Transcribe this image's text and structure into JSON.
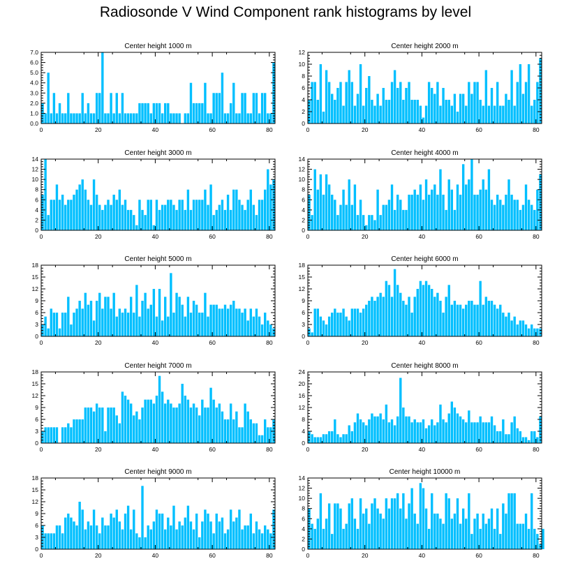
{
  "title": "Radiosonde V Wind Component rank histograms by level",
  "colors": {
    "bar": "#00BFFF",
    "axis": "#000000"
  },
  "chart_data": [
    {
      "type": "bar",
      "title": "Center height 1000 m",
      "xlabel": "",
      "ylabel": "",
      "xlim": [
        0,
        82
      ],
      "ylim": [
        0,
        7
      ],
      "yticks": [
        "0.0",
        "1.0",
        "2.0",
        "3.0",
        "4.0",
        "5.0",
        "6.0",
        "7.0"
      ],
      "ytick_values": [
        0,
        1,
        2,
        3,
        4,
        5,
        6,
        7
      ],
      "xticks": [
        0,
        20,
        40,
        60,
        80
      ],
      "values": [
        2,
        1,
        5,
        1,
        3,
        1,
        2,
        1,
        1,
        3,
        1,
        1,
        1,
        1,
        3,
        1,
        2,
        1,
        1,
        3,
        3,
        7,
        1,
        1,
        3,
        1,
        3,
        1,
        3,
        1,
        1,
        1,
        1,
        1,
        2,
        2,
        2,
        2,
        1,
        2,
        2,
        2,
        1,
        2,
        2,
        1,
        1,
        1,
        1,
        0,
        1,
        1,
        4,
        2,
        2,
        2,
        2,
        4,
        1,
        1,
        3,
        3,
        3,
        5,
        1,
        1,
        2,
        4,
        1,
        1,
        3,
        3,
        1,
        1,
        3,
        3,
        1,
        3,
        3,
        1,
        1,
        6
      ]
    },
    {
      "type": "bar",
      "title": "Center height 2000 m",
      "xlabel": "",
      "ylabel": "",
      "xlim": [
        0,
        82
      ],
      "ylim": [
        0,
        12
      ],
      "yticks": [
        "0",
        "2",
        "4",
        "6",
        "8",
        "10",
        "12"
      ],
      "ytick_values": [
        0,
        2,
        4,
        6,
        8,
        10,
        12
      ],
      "xticks": [
        0,
        20,
        40,
        60,
        80
      ],
      "values": [
        4,
        7,
        7,
        4,
        10,
        2,
        9,
        7,
        5,
        4,
        6,
        7,
        3,
        7,
        9,
        7,
        3,
        5,
        10,
        3,
        6,
        8,
        4,
        3,
        5,
        3,
        6,
        4,
        4,
        7,
        9,
        6,
        7,
        4,
        6,
        7,
        4,
        4,
        4,
        3,
        1,
        3,
        7,
        6,
        5,
        7,
        3,
        6,
        4,
        4,
        3,
        5,
        2,
        5,
        5,
        3,
        7,
        5,
        7,
        7,
        4,
        3,
        9,
        3,
        6,
        3,
        7,
        3,
        3,
        5,
        4,
        9,
        3,
        7,
        10,
        5,
        7,
        10,
        3,
        4,
        7,
        11
      ]
    },
    {
      "type": "bar",
      "title": "Center height 3000 m",
      "xlabel": "",
      "ylabel": "",
      "xlim": [
        0,
        82
      ],
      "ylim": [
        0,
        14
      ],
      "yticks": [
        "0",
        "2",
        "4",
        "6",
        "8",
        "10",
        "12",
        "14"
      ],
      "ytick_values": [
        0,
        2,
        4,
        6,
        8,
        10,
        12,
        14
      ],
      "xticks": [
        0,
        20,
        40,
        60,
        80
      ],
      "values": [
        7,
        14,
        3,
        6,
        6,
        9,
        6,
        7,
        5,
        6,
        6,
        7,
        8,
        9,
        10,
        8,
        6,
        5,
        10,
        7,
        5,
        4,
        5,
        6,
        5,
        7,
        6,
        8,
        5,
        6,
        4,
        4,
        3,
        1,
        6,
        4,
        3,
        6,
        6,
        1,
        6,
        4,
        5,
        5,
        6,
        6,
        5,
        4,
        6,
        6,
        4,
        8,
        4,
        6,
        6,
        6,
        6,
        8,
        5,
        9,
        3,
        4,
        5,
        6,
        4,
        7,
        4,
        8,
        8,
        6,
        5,
        4,
        6,
        8,
        5,
        3,
        6,
        6,
        8,
        12,
        9,
        10
      ]
    },
    {
      "type": "bar",
      "title": "Center height 4000 m",
      "xlabel": "",
      "ylabel": "",
      "xlim": [
        0,
        82
      ],
      "ylim": [
        0,
        14
      ],
      "yticks": [
        "0",
        "2",
        "4",
        "6",
        "8",
        "10",
        "12",
        "14"
      ],
      "ytick_values": [
        0,
        2,
        4,
        6,
        8,
        10,
        12,
        14
      ],
      "xticks": [
        0,
        20,
        40,
        60,
        80
      ],
      "values": [
        7,
        3,
        12,
        8,
        11,
        7,
        11,
        9,
        7,
        6,
        3,
        5,
        8,
        5,
        10,
        5,
        9,
        3,
        6,
        3,
        1,
        3,
        3,
        2,
        8,
        3,
        5,
        5,
        6,
        9,
        4,
        7,
        6,
        4,
        4,
        7,
        7,
        8,
        7,
        9,
        6,
        10,
        7,
        8,
        9,
        7,
        12,
        7,
        4,
        10,
        8,
        4,
        9,
        7,
        13,
        9,
        10,
        14,
        7,
        7,
        8,
        10,
        8,
        12,
        6,
        5,
        7,
        6,
        5,
        7,
        10,
        7,
        6,
        6,
        4,
        5,
        9,
        6,
        5,
        4,
        8,
        11
      ]
    },
    {
      "type": "bar",
      "title": "Center height 5000 m",
      "xlabel": "",
      "ylabel": "",
      "xlim": [
        0,
        82
      ],
      "ylim": [
        0,
        18
      ],
      "yticks": [
        "0",
        "3",
        "6",
        "9",
        "12",
        "15",
        "18"
      ],
      "ytick_values": [
        0,
        3,
        6,
        9,
        12,
        15,
        18
      ],
      "xticks": [
        0,
        20,
        40,
        60,
        80
      ],
      "values": [
        3,
        5,
        2,
        7,
        6,
        6,
        2,
        6,
        6,
        10,
        3,
        6,
        7,
        9,
        7,
        11,
        8,
        9,
        4,
        9,
        11,
        7,
        10,
        10,
        7,
        11,
        5,
        7,
        6,
        7,
        6,
        10,
        6,
        13,
        5,
        9,
        11,
        7,
        8,
        12,
        5,
        12,
        4,
        10,
        5,
        16,
        6,
        11,
        10,
        8,
        5,
        10,
        6,
        9,
        8,
        6,
        6,
        11,
        5,
        8,
        8,
        8,
        7,
        7,
        8,
        7,
        8,
        9,
        7,
        7,
        6,
        7,
        4,
        7,
        5,
        7,
        5,
        3,
        6,
        4,
        3,
        2
      ]
    },
    {
      "type": "bar",
      "title": "Center height 6000 m",
      "xlabel": "",
      "ylabel": "",
      "xlim": [
        0,
        82
      ],
      "ylim": [
        0,
        18
      ],
      "yticks": [
        "0",
        "3",
        "6",
        "9",
        "12",
        "15",
        "18"
      ],
      "ytick_values": [
        0,
        3,
        6,
        9,
        12,
        15,
        18
      ],
      "xticks": [
        0,
        20,
        40,
        60,
        80
      ],
      "values": [
        2,
        1,
        7,
        7,
        5,
        4,
        3,
        5,
        6,
        7,
        6,
        6,
        7,
        5,
        4,
        7,
        7,
        7,
        6,
        7,
        8,
        9,
        10,
        9,
        10,
        11,
        10,
        14,
        13,
        10,
        17,
        13,
        11,
        9,
        8,
        10,
        6,
        10,
        12,
        14,
        13,
        14,
        13,
        12,
        10,
        11,
        9,
        6,
        10,
        13,
        8,
        9,
        8,
        8,
        7,
        8,
        9,
        9,
        8,
        8,
        14,
        8,
        10,
        9,
        9,
        8,
        7,
        8,
        6,
        5,
        6,
        4,
        5,
        3,
        4,
        4,
        3,
        2,
        3,
        2,
        2,
        2
      ]
    },
    {
      "type": "bar",
      "title": "Center height 7000 m",
      "xlabel": "",
      "ylabel": "",
      "xlim": [
        0,
        82
      ],
      "ylim": [
        0,
        18
      ],
      "yticks": [
        "0",
        "3",
        "6",
        "9",
        "12",
        "15",
        "18"
      ],
      "ytick_values": [
        0,
        3,
        6,
        9,
        12,
        15,
        18
      ],
      "xticks": [
        0,
        20,
        40,
        60,
        80
      ],
      "values": [
        3,
        4,
        4,
        4,
        4,
        4,
        0,
        4,
        4,
        5,
        4,
        6,
        6,
        6,
        6,
        9,
        9,
        9,
        8,
        10,
        9,
        9,
        3,
        9,
        9,
        9,
        7,
        5,
        13,
        12,
        11,
        10,
        7,
        8,
        6,
        9,
        11,
        11,
        11,
        10,
        12,
        17,
        13,
        10,
        11,
        10,
        9,
        9,
        10,
        15,
        12,
        11,
        9,
        10,
        9,
        7,
        11,
        9,
        9,
        14,
        11,
        9,
        10,
        8,
        6,
        6,
        10,
        6,
        8,
        4,
        4,
        10,
        8,
        6,
        5,
        5,
        2,
        2,
        6,
        4,
        4,
        6
      ]
    },
    {
      "type": "bar",
      "title": "Center height 8000 m",
      "xlabel": "",
      "ylabel": "",
      "xlim": [
        0,
        82
      ],
      "ylim": [
        0,
        24
      ],
      "yticks": [
        "0",
        "4",
        "8",
        "12",
        "16",
        "20",
        "24"
      ],
      "ytick_values": [
        0,
        4,
        8,
        12,
        16,
        20,
        24
      ],
      "xticks": [
        0,
        20,
        40,
        60,
        80
      ],
      "values": [
        4,
        3,
        2,
        2,
        2,
        3,
        3,
        4,
        4,
        8,
        3,
        2,
        3,
        3,
        6,
        4,
        7,
        10,
        8,
        7,
        6,
        8,
        10,
        9,
        9,
        10,
        8,
        13,
        7,
        8,
        6,
        9,
        22,
        12,
        9,
        9,
        7,
        8,
        7,
        7,
        8,
        5,
        6,
        8,
        6,
        7,
        13,
        8,
        7,
        10,
        14,
        12,
        10,
        9,
        8,
        7,
        11,
        7,
        7,
        7,
        9,
        7,
        7,
        7,
        9,
        6,
        4,
        4,
        8,
        3,
        3,
        7,
        9,
        5,
        4,
        2,
        2,
        1,
        4,
        4,
        2,
        9
      ]
    },
    {
      "type": "bar",
      "title": "Center height 9000 m",
      "xlabel": "",
      "ylabel": "",
      "xlim": [
        0,
        82
      ],
      "ylim": [
        0,
        18
      ],
      "yticks": [
        "0",
        "3",
        "6",
        "9",
        "12",
        "15",
        "18"
      ],
      "ytick_values": [
        0,
        3,
        6,
        9,
        12,
        15,
        18
      ],
      "xticks": [
        0,
        20,
        40,
        60,
        80
      ],
      "values": [
        6,
        4,
        4,
        4,
        4,
        6,
        6,
        4,
        8,
        9,
        8,
        7,
        6,
        12,
        10,
        5,
        7,
        6,
        10,
        6,
        4,
        8,
        6,
        6,
        9,
        8,
        10,
        7,
        5,
        9,
        11,
        5,
        10,
        4,
        3,
        16,
        3,
        6,
        5,
        7,
        10,
        9,
        9,
        5,
        8,
        6,
        11,
        5,
        7,
        6,
        8,
        11,
        7,
        5,
        9,
        3,
        7,
        10,
        9,
        7,
        4,
        9,
        7,
        8,
        4,
        5,
        10,
        7,
        8,
        10,
        5,
        6,
        6,
        9,
        4,
        7,
        5,
        4,
        6,
        5,
        4,
        10
      ]
    },
    {
      "type": "bar",
      "title": "Center height 10000 m",
      "xlabel": "",
      "ylabel": "",
      "xlim": [
        0,
        82
      ],
      "ylim": [
        0,
        14
      ],
      "yticks": [
        "0",
        "2",
        "4",
        "6",
        "8",
        "10",
        "12",
        "14"
      ],
      "ytick_values": [
        0,
        2,
        4,
        6,
        8,
        10,
        12,
        14
      ],
      "xticks": [
        0,
        20,
        40,
        60,
        80
      ],
      "values": [
        8,
        5,
        4,
        6,
        11,
        4,
        6,
        9,
        3,
        9,
        9,
        8,
        4,
        5,
        9,
        10,
        6,
        4,
        10,
        7,
        8,
        5,
        9,
        10,
        8,
        7,
        6,
        10,
        8,
        10,
        10,
        11,
        8,
        11,
        6,
        9,
        12,
        7,
        5,
        13,
        12,
        8,
        4,
        11,
        7,
        7,
        6,
        5,
        11,
        10,
        6,
        7,
        10,
        5,
        8,
        6,
        11,
        3,
        6,
        7,
        4,
        7,
        5,
        6,
        8,
        4,
        8,
        3,
        9,
        7,
        11,
        11,
        11,
        5,
        5,
        5,
        7,
        4,
        11,
        4,
        3,
        1,
        4
      ]
    }
  ]
}
